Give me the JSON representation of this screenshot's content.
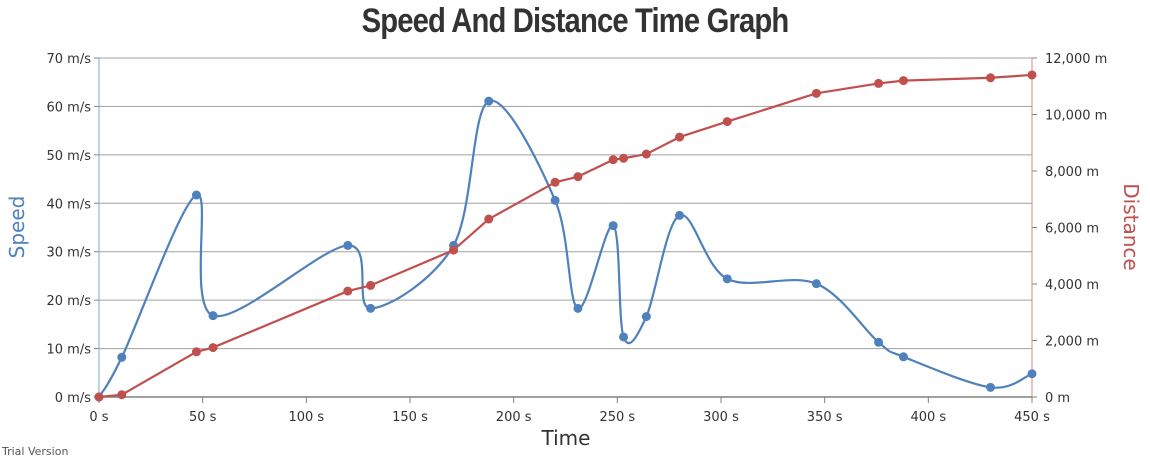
{
  "chart_data": {
    "type": "line",
    "title": "Speed And Distance Time Graph",
    "xlabel": "Time",
    "ylabel": "Speed",
    "y2label": "Distance",
    "xlim": [
      0,
      450
    ],
    "ylim": [
      0,
      70
    ],
    "y2lim": [
      0,
      12000
    ],
    "x_ticks": [
      "0 s",
      "50 s",
      "100 s",
      "150 s",
      "200 s",
      "250 s",
      "300 s",
      "350 s",
      "400 s",
      "450 s"
    ],
    "y_ticks": [
      "0 m/s",
      "10 m/s",
      "20 m/s",
      "30 m/s",
      "40 m/s",
      "50 m/s",
      "60 m/s",
      "70 m/s"
    ],
    "y2_ticks": [
      "0 m",
      "2,000 m",
      "4,000 m",
      "6,000 m",
      "8,000 m",
      "10,000 m",
      "12,000 m"
    ],
    "grid": true,
    "colors": {
      "speed": "#4f81bc",
      "distance": "#c0504e",
      "grid": "#a0a0a0",
      "axis": "#808080"
    },
    "series": [
      {
        "axis": "left",
        "smooth": true,
        "x": [
          0,
          11,
          47,
          55,
          120,
          131,
          171,
          188,
          220,
          231,
          248,
          253,
          264,
          280,
          303,
          346,
          376,
          388,
          430,
          450
        ],
        "values": [
          0,
          8.2,
          41.7,
          16.8,
          31.3,
          18.3,
          31.3,
          61.1,
          40.6,
          18.3,
          35.4,
          12.4,
          16.6,
          37.5,
          24.4,
          23.4,
          11.3,
          8.3,
          2,
          4.8
        ]
      },
      {
        "axis": "right",
        "smooth": false,
        "x": [
          0,
          11,
          47,
          55,
          120,
          131,
          171,
          188,
          220,
          231,
          248,
          253,
          264,
          280,
          303,
          346,
          376,
          388,
          430,
          450
        ],
        "values": [
          0,
          80,
          1600,
          1750,
          3750,
          3950,
          5200,
          6300,
          7600,
          7800,
          8400,
          8450,
          8600,
          9200,
          9750,
          10750,
          11100,
          11200,
          11300,
          11400
        ]
      }
    ]
  },
  "watermark": "Trial Version"
}
